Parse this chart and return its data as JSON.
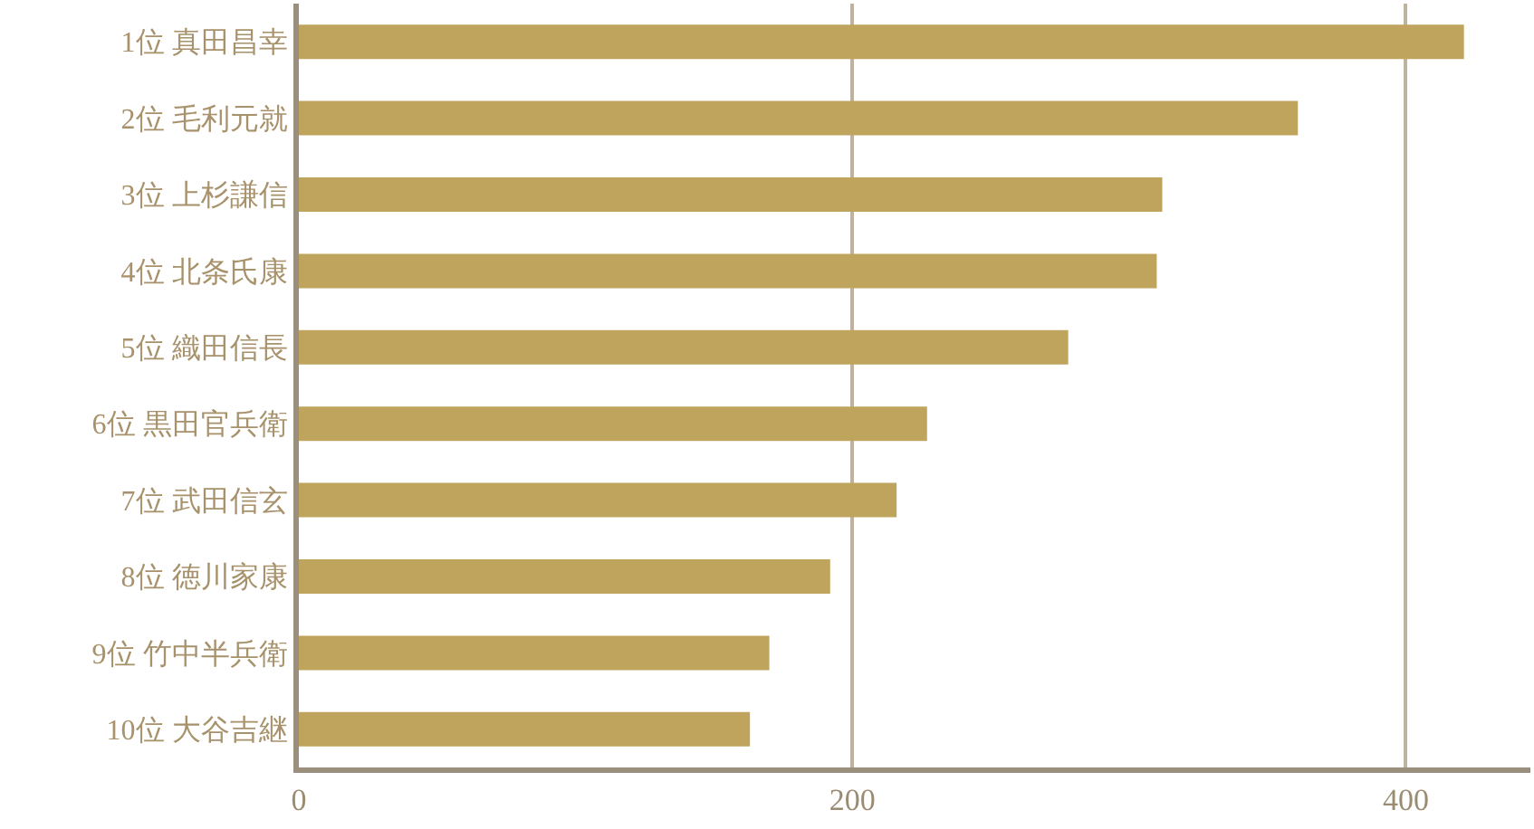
{
  "chart_data": {
    "type": "bar",
    "orientation": "horizontal",
    "categories": [
      "1位 真田昌幸",
      "2位 毛利元就",
      "3位 上杉謙信",
      "4位 北条氏康",
      "5位 織田信長",
      "6位 黒田官兵衛",
      "7位 武田信玄",
      "8位 徳川家康",
      "9位 竹中半兵衛",
      "10位 大谷吉継"
    ],
    "values": [
      421,
      361,
      312,
      310,
      278,
      227,
      216,
      192,
      170,
      163
    ],
    "color": "#bfa45e",
    "xlim": [
      0,
      445
    ],
    "xticks": [
      0,
      200,
      400
    ],
    "grid": "x"
  }
}
